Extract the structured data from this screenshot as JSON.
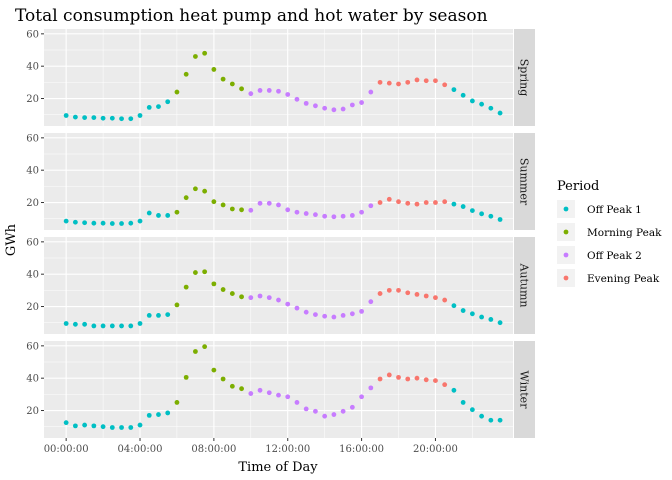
{
  "chart_data": {
    "type": "scatter",
    "title": "Total consumption heat pump and hot water by season",
    "xlabel": "Time of Day",
    "ylabel": "GWh",
    "ylim": [
      3,
      63
    ],
    "yticks": [
      20,
      40,
      60
    ],
    "ytick_labels": [
      "20",
      "40",
      "60"
    ],
    "xtick_labels": [
      "00:00:00",
      "04:00:00",
      "08:00:00",
      "12:00:00",
      "16:00:00",
      "20:00:00"
    ],
    "xticks_hours": [
      0,
      4,
      8,
      12,
      16,
      20
    ],
    "x_unit": "hours (half-hourly)",
    "xlim_hours": [
      -1.2,
      24.2
    ],
    "facets": [
      "Spring",
      "Summer",
      "Autumn",
      "Winter"
    ],
    "legend": {
      "title": "Period",
      "placement": "right",
      "items": [
        {
          "name": "Off Peak 1",
          "color": "#00BFC4"
        },
        {
          "name": "Morning Peak",
          "color": "#7CAE00"
        },
        {
          "name": "Off Peak 2",
          "color": "#C77CFF"
        },
        {
          "name": "Evening Peak",
          "color": "#F8766D"
        }
      ]
    },
    "period_by_hour": [
      {
        "from": 0,
        "to": 6,
        "period": "Off Peak 1"
      },
      {
        "from": 6,
        "to": 10,
        "period": "Morning Peak"
      },
      {
        "from": 10,
        "to": 17,
        "period": "Off Peak 2"
      },
      {
        "from": 17,
        "to": 21,
        "period": "Evening Peak"
      },
      {
        "from": 21,
        "to": 24,
        "period": "Off Peak 1"
      }
    ],
    "series": [
      {
        "name": "Spring",
        "values": [
          9.5,
          8.5,
          8.2,
          8.2,
          7.8,
          7.8,
          7.5,
          7.5,
          9.5,
          14.5,
          15,
          18,
          24,
          35,
          46,
          48,
          38,
          32,
          29,
          26,
          23,
          25,
          25,
          24.5,
          22.5,
          19.5,
          17,
          15.5,
          14,
          13,
          13.5,
          16,
          17.5,
          24,
          30,
          29.5,
          29,
          30,
          31.5,
          31,
          31,
          28.5,
          25.5,
          22,
          18.5,
          16.5,
          14,
          11
        ]
      },
      {
        "name": "Summer",
        "values": [
          8.5,
          7.8,
          7.5,
          7.2,
          7.2,
          7,
          7,
          7.2,
          8.5,
          13.5,
          12,
          12,
          14,
          23,
          28.5,
          27,
          20.5,
          18.5,
          16,
          15.5,
          15.2,
          19.5,
          19.5,
          18.5,
          15.5,
          14,
          13.2,
          12.5,
          11.5,
          11.2,
          11.5,
          12,
          14,
          18,
          20,
          22,
          20.5,
          19.5,
          19,
          20,
          20,
          20.5,
          19,
          17.5,
          15,
          13,
          11.5,
          9.5
        ]
      },
      {
        "name": "Autumn",
        "values": [
          9.5,
          9,
          9,
          8,
          8,
          8,
          8,
          8,
          9.5,
          14.5,
          14.5,
          15,
          21,
          32,
          41,
          41.5,
          34,
          30.5,
          28,
          26,
          25.5,
          26.5,
          25.5,
          24,
          21.5,
          19,
          16.5,
          15,
          14,
          13.5,
          14.5,
          15.5,
          17,
          23,
          28,
          30,
          30,
          28.5,
          27.5,
          26.5,
          25.5,
          24,
          20.5,
          17.5,
          15.5,
          13.5,
          12,
          10
        ]
      },
      {
        "name": "Winter",
        "values": [
          12.5,
          10.5,
          11,
          10.5,
          10,
          9.5,
          9.5,
          9.5,
          11,
          17,
          17.5,
          18.5,
          25,
          40.5,
          56.5,
          59.5,
          45,
          39.5,
          35,
          33.5,
          30.5,
          32.5,
          31,
          29.5,
          28.5,
          25,
          21,
          19.5,
          16.5,
          17.5,
          19.5,
          22,
          28.5,
          34,
          39.5,
          42,
          40.5,
          39.5,
          40,
          39,
          38.5,
          36,
          32.5,
          25,
          20.5,
          16.5,
          14,
          14
        ]
      }
    ]
  }
}
